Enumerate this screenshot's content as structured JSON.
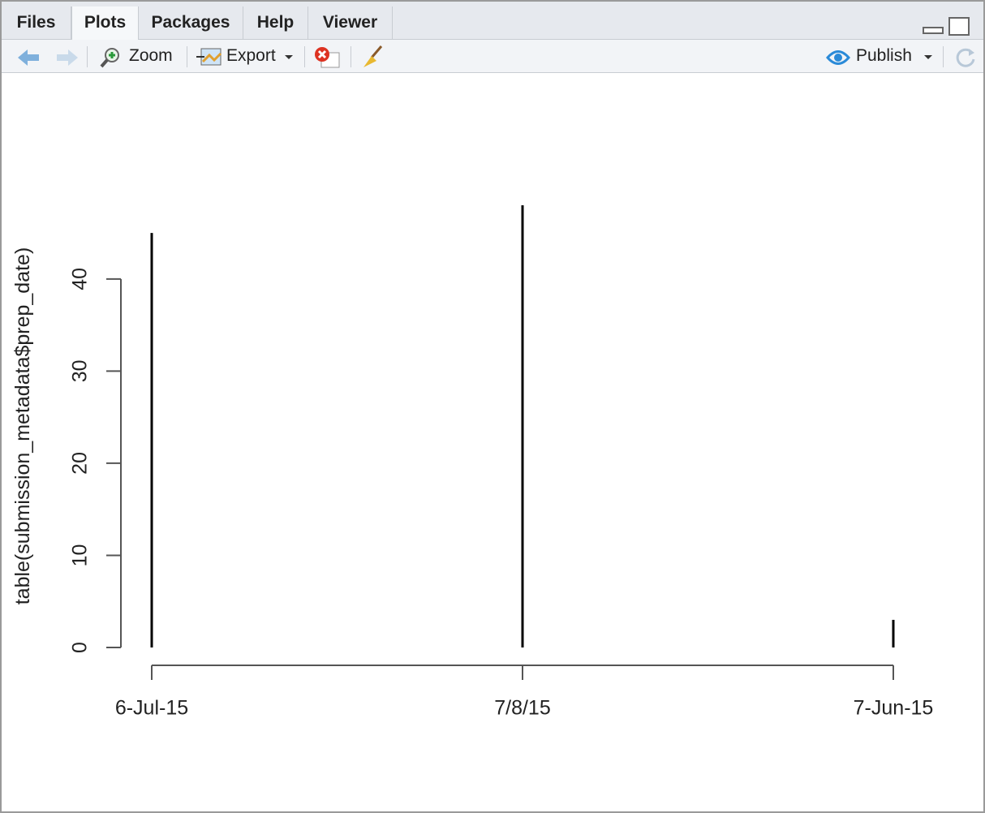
{
  "tabs": [
    "Files",
    "Plots",
    "Packages",
    "Help",
    "Viewer"
  ],
  "toolbar": {
    "zoom": "Zoom",
    "export": "Export",
    "publish": "Publish"
  },
  "chart_data": {
    "type": "bar",
    "y_label": "table(submission_metadata$prep_date)",
    "categories": [
      "6-Jul-15",
      "7/8/15",
      "7-Jun-15"
    ],
    "values": [
      45,
      48,
      3
    ],
    "color": "#000000",
    "ylim": [
      0,
      48
    ],
    "yticks": [
      0,
      10,
      20,
      30,
      40
    ]
  }
}
